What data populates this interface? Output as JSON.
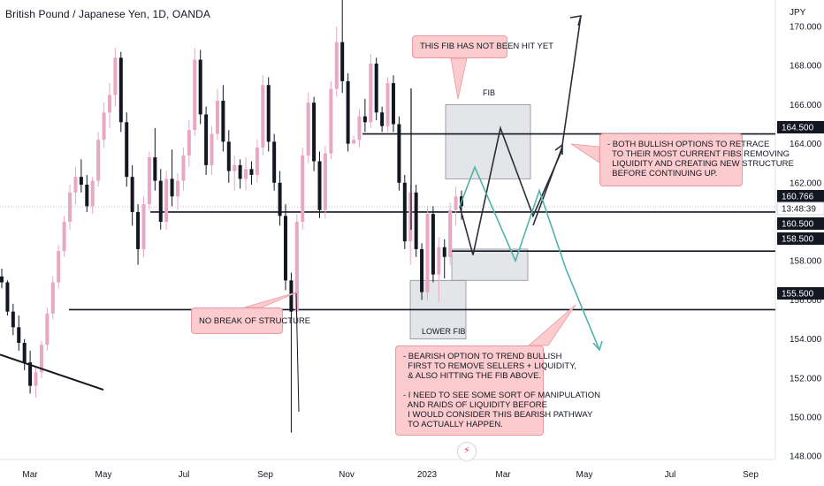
{
  "header": {
    "title": "British Pound / Japanese Yen, 1D, OANDA"
  },
  "chart_data": {
    "type": "candlestick",
    "symbol": "GBPJPY",
    "currency_label": "JPY",
    "y_axis_ticks": [
      148,
      150,
      152,
      154,
      156,
      158,
      160,
      162,
      164,
      166,
      168,
      170
    ],
    "y_axis_tick_labels": [
      "148.000",
      "150.000",
      "152.000",
      "154.000",
      "156.000",
      "158.000",
      "160.000",
      "162.000",
      "164.000",
      "166.000",
      "168.000",
      "170.000"
    ],
    "ylim": [
      146.6,
      171.6
    ],
    "x_axis_labels": [
      "Mar",
      "May",
      "Jul",
      "Sep",
      "Nov",
      "2023",
      "Mar",
      "May",
      "Jul",
      "Sep"
    ],
    "price_tags": [
      {
        "value": 164.5,
        "label": "164.500",
        "style": "dark"
      },
      {
        "value": 160.766,
        "label": "160.766",
        "style": "dark"
      },
      {
        "value": 160.5,
        "label": "13:48:39",
        "style": "light"
      },
      {
        "value": 160.5,
        "label": "160.500",
        "style": "dark"
      },
      {
        "value": 158.5,
        "label": "158.500",
        "style": "dark"
      },
      {
        "value": 155.5,
        "label": "155.500",
        "style": "dark"
      }
    ],
    "horizontal_levels": [
      164.5,
      160.5,
      158.5,
      155.5
    ],
    "current_price": 160.766,
    "candles": [
      [
        157.2,
        157.6,
        156.6,
        156.9
      ],
      [
        156.9,
        157.0,
        155.2,
        155.4
      ],
      [
        155.4,
        155.8,
        154.2,
        154.6
      ],
      [
        154.6,
        155.2,
        153.4,
        153.8
      ],
      [
        153.8,
        154.0,
        152.4,
        152.8
      ],
      [
        152.8,
        153.4,
        151.2,
        151.6
      ],
      [
        151.6,
        152.6,
        151.0,
        152.3
      ],
      [
        152.3,
        153.9,
        152.0,
        153.7
      ],
      [
        153.7,
        155.6,
        153.4,
        155.3
      ],
      [
        155.3,
        157.2,
        155.0,
        156.9
      ],
      [
        156.9,
        158.8,
        156.6,
        158.5
      ],
      [
        158.5,
        160.3,
        158.2,
        160.0
      ],
      [
        160.0,
        161.9,
        159.6,
        161.5
      ],
      [
        161.5,
        162.8,
        160.9,
        162.3
      ],
      [
        162.3,
        163.2,
        161.5,
        161.9
      ],
      [
        161.9,
        162.4,
        160.5,
        160.8
      ],
      [
        160.8,
        162.3,
        160.4,
        162.1
      ],
      [
        162.1,
        164.6,
        161.8,
        164.2
      ],
      [
        164.2,
        166.1,
        163.8,
        165.6
      ],
      [
        165.6,
        167.1,
        164.8,
        166.5
      ],
      [
        166.5,
        168.9,
        165.9,
        168.4
      ],
      [
        168.4,
        168.7,
        164.6,
        165.1
      ],
      [
        165.1,
        165.6,
        161.8,
        162.3
      ],
      [
        162.3,
        162.9,
        159.8,
        160.5
      ],
      [
        160.5,
        160.9,
        157.8,
        158.6
      ],
      [
        158.6,
        161.3,
        158.2,
        160.9
      ],
      [
        160.9,
        163.6,
        160.6,
        163.3
      ],
      [
        163.3,
        164.8,
        161.6,
        162.1
      ],
      [
        162.1,
        162.7,
        159.6,
        160.0
      ],
      [
        160.0,
        162.6,
        159.6,
        162.2
      ],
      [
        162.2,
        163.7,
        160.8,
        161.3
      ],
      [
        161.3,
        162.5,
        160.6,
        162.1
      ],
      [
        162.1,
        163.8,
        161.6,
        163.4
      ],
      [
        163.4,
        165.2,
        162.8,
        164.7
      ],
      [
        164.7,
        168.9,
        164.4,
        168.3
      ],
      [
        168.3,
        168.8,
        165.0,
        165.5
      ],
      [
        165.5,
        165.9,
        162.4,
        162.9
      ],
      [
        162.9,
        164.9,
        162.4,
        164.5
      ],
      [
        164.5,
        166.8,
        164.2,
        166.2
      ],
      [
        166.2,
        167.0,
        163.6,
        164.1
      ],
      [
        164.1,
        164.7,
        162.0,
        162.6
      ],
      [
        162.6,
        163.4,
        161.6,
        162.9
      ],
      [
        162.9,
        163.2,
        161.7,
        162.2
      ],
      [
        162.2,
        163.3,
        161.6,
        162.7
      ],
      [
        162.7,
        163.1,
        161.9,
        162.4
      ],
      [
        162.4,
        164.2,
        162.0,
        163.8
      ],
      [
        163.8,
        167.5,
        163.4,
        167.0
      ],
      [
        167.0,
        167.4,
        163.6,
        164.1
      ],
      [
        164.1,
        164.5,
        161.6,
        162.0
      ],
      [
        162.0,
        162.6,
        159.8,
        160.3
      ],
      [
        160.3,
        160.9,
        156.5,
        157.0
      ],
      [
        157.0,
        157.4,
        149.2,
        155.4
      ],
      [
        155.4,
        160.4,
        155.0,
        160.0
      ],
      [
        160.0,
        163.8,
        159.6,
        163.4
      ],
      [
        163.4,
        166.6,
        163.0,
        166.1
      ],
      [
        166.1,
        166.4,
        162.6,
        163.1
      ],
      [
        163.1,
        163.6,
        160.2,
        160.6
      ],
      [
        160.6,
        163.9,
        160.2,
        163.5
      ],
      [
        163.5,
        167.2,
        163.2,
        166.8
      ],
      [
        166.8,
        170.0,
        166.4,
        169.2
      ],
      [
        169.2,
        171.5,
        166.6,
        167.2
      ],
      [
        167.2,
        167.6,
        163.6,
        164.0
      ],
      [
        164.0,
        164.4,
        164.0,
        164.2
      ],
      [
        164.2,
        165.8,
        163.8,
        165.4
      ],
      [
        165.4,
        166.3,
        164.6,
        165.1
      ],
      [
        165.1,
        168.6,
        164.8,
        168.1
      ],
      [
        168.1,
        168.4,
        165.2,
        165.6
      ],
      [
        165.6,
        165.9,
        164.6,
        164.9
      ],
      [
        164.9,
        167.4,
        164.6,
        167.1
      ],
      [
        167.1,
        167.5,
        164.6,
        165.0
      ],
      [
        165.0,
        165.4,
        161.6,
        162.0
      ],
      [
        162.0,
        162.4,
        158.6,
        159.0
      ],
      [
        159.0,
        161.9,
        157.8,
        161.5
      ],
      [
        161.5,
        161.9,
        158.2,
        158.6
      ],
      [
        158.6,
        158.9,
        156.0,
        156.4
      ],
      [
        156.4,
        160.8,
        156.0,
        160.4
      ],
      [
        160.4,
        160.8,
        156.9,
        157.3
      ],
      [
        157.3,
        159.2,
        155.9,
        158.7
      ],
      [
        158.7,
        159.1,
        157.1,
        158.2
      ],
      [
        158.2,
        161.0,
        157.8,
        160.6
      ],
      [
        160.6,
        161.8,
        159.8,
        161.3
      ],
      [
        161.3,
        161.6,
        160.1,
        160.8
      ]
    ],
    "fib_zones": [
      {
        "name": "upper",
        "label": "FIB",
        "low": 162.2,
        "high": 166.0
      },
      {
        "name": "middle",
        "label": "",
        "low": 157.0,
        "high": 158.6
      },
      {
        "name": "lower",
        "label": "LOWER FIB",
        "low": 154.0,
        "high": 157.0
      }
    ],
    "trendline": [
      [
        145,
        153.2
      ],
      [
        200,
        151.4
      ]
    ],
    "bullish_path": [
      [
        160.8
      ],
      [
        158.3
      ],
      [
        164.8
      ],
      [
        160.3
      ],
      [
        163.6
      ],
      [
        170.0
      ]
    ],
    "bearish_path": [
      [
        160.8
      ],
      [
        162.8
      ],
      [
        158.0
      ],
      [
        161.6
      ],
      [
        157.6
      ],
      [
        152.8
      ]
    ]
  },
  "annotations": {
    "fib_not_hit": "THIS FIB HAS NOT BEEN HIT YET",
    "bullish_options": "- BOTH BULLISH OPTIONS TO RETRACE\n  TO THEIR MOST CURRENT FIBS REMOVING\n  LIQUIDITY AND CREATING NEW STRUCTURE\n  BEFORE CONTINUING UP.",
    "no_break": "NO BREAK OF STRUCTURE",
    "bearish_option": "- BEARISH OPTION TO TREND BULLISH\n  FIRST TO REMOVE SELLERS + LIQUIDITY,\n  & ALSO HITTING THE FIB ABOVE.\n\n- I NEED TO SEE SOME SORT OF MANIPULATION\n  AND RAIDS OF LIQUIDITY BEFORE\n  I WOULD CONSIDER THIS BEARISH PATHWAY\n  TO ACTUALLY HAPPEN.",
    "fib_label": "FIB",
    "lower_fib_label": "LOWER FIB"
  },
  "colors": {
    "bull_candle": "#e8a7c3",
    "bear_candle": "#131722",
    "bullish_path": "#2a2e39",
    "bearish_path": "#4fb3a9",
    "fib_zone": "#b2b5be",
    "callout_bg": "#fccbcd"
  },
  "icons": {
    "flash": "lightning-icon"
  }
}
